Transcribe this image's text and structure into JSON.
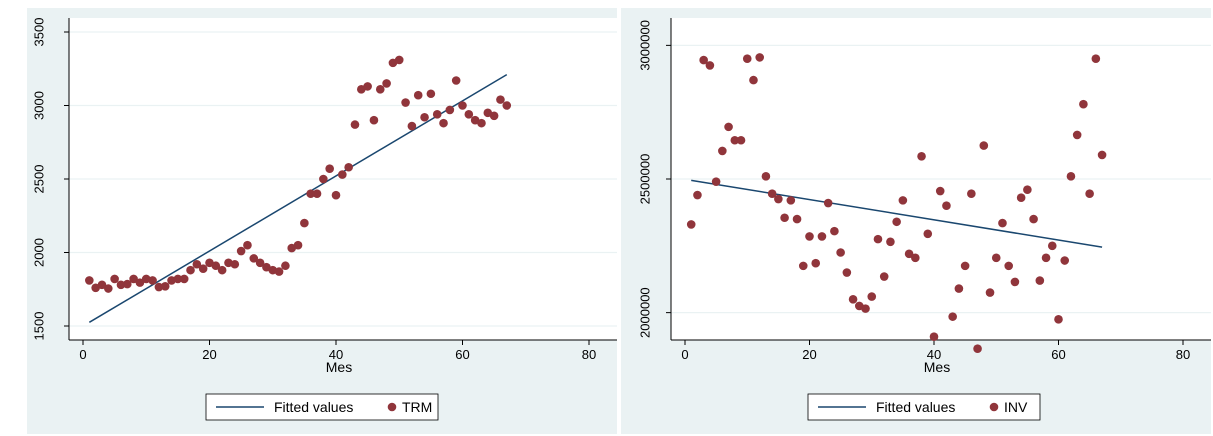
{
  "chart_data": [
    {
      "type": "scatter",
      "xlabel": "Mes",
      "ylabel": "",
      "xlim": [
        0,
        80
      ],
      "ylim": [
        1500,
        3500
      ],
      "x_ticks": [
        0,
        20,
        40,
        60,
        80
      ],
      "y_ticks": [
        1500,
        2000,
        2500,
        3000,
        3500
      ],
      "grid": true,
      "legend_position": "bottom",
      "fit_color": "#1a476f",
      "point_color": "#90353b",
      "series": [
        {
          "name": "TRM",
          "kind": "scatter",
          "x": [
            1,
            2,
            3,
            4,
            5,
            6,
            7,
            8,
            9,
            10,
            11,
            12,
            13,
            14,
            15,
            16,
            17,
            18,
            19,
            20,
            21,
            22,
            23,
            24,
            25,
            26,
            27,
            28,
            29,
            30,
            31,
            32,
            33,
            34,
            35,
            36,
            37,
            38,
            39,
            40,
            41,
            42,
            43,
            44,
            45,
            46,
            47,
            48,
            49,
            50,
            51,
            52,
            53,
            54,
            55,
            56,
            57,
            58,
            59,
            60,
            61,
            62,
            63,
            64,
            65,
            66,
            67
          ],
          "y": [
            1810,
            1760,
            1780,
            1755,
            1820,
            1780,
            1785,
            1820,
            1795,
            1820,
            1810,
            1765,
            1770,
            1810,
            1820,
            1820,
            1880,
            1920,
            1890,
            1930,
            1910,
            1880,
            1930,
            1920,
            2010,
            2050,
            1960,
            1930,
            1900,
            1880,
            1870,
            1910,
            2030,
            2050,
            2200,
            2400,
            2400,
            2500,
            2570,
            2390,
            2530,
            2580,
            2870,
            3110,
            3130,
            2900,
            3110,
            3150,
            3290,
            3310,
            3020,
            2860,
            3070,
            2920,
            3080,
            2940,
            2880,
            2970,
            3170,
            3000,
            2940,
            2900,
            2880,
            2950,
            2930,
            3040,
            3000
          ]
        },
        {
          "name": "Fitted values",
          "kind": "line",
          "x": [
            1,
            67
          ],
          "y": [
            1525,
            3210
          ]
        }
      ]
    },
    {
      "type": "scatter",
      "xlabel": "Mes",
      "ylabel": "",
      "xlim": [
        0,
        80
      ],
      "ylim": [
        1950000,
        3050000
      ],
      "x_ticks": [
        0,
        20,
        40,
        60,
        80
      ],
      "y_ticks": [
        2000000,
        2500000,
        3000000
      ],
      "grid": true,
      "legend_position": "bottom",
      "fit_color": "#1a476f",
      "point_color": "#90353b",
      "series": [
        {
          "name": "INV",
          "kind": "scatter",
          "x": [
            1,
            2,
            3,
            4,
            5,
            6,
            7,
            8,
            9,
            10,
            11,
            12,
            13,
            14,
            15,
            16,
            17,
            18,
            19,
            20,
            21,
            22,
            23,
            24,
            25,
            26,
            27,
            28,
            29,
            30,
            31,
            32,
            33,
            34,
            35,
            36,
            37,
            38,
            39,
            40,
            41,
            42,
            43,
            44,
            45,
            46,
            47,
            48,
            49,
            50,
            51,
            52,
            53,
            54,
            55,
            56,
            57,
            58,
            59,
            60,
            61,
            62,
            63,
            64,
            65,
            66,
            67
          ],
          "y": [
            2330000,
            2440000,
            2945000,
            2925000,
            2490000,
            2605000,
            2695000,
            2645000,
            2645000,
            2950000,
            2870000,
            2955000,
            2510000,
            2445000,
            2425000,
            2355000,
            2420000,
            2350000,
            2175000,
            2285000,
            2185000,
            2285000,
            2410000,
            2305000,
            2225000,
            2150000,
            2050000,
            2025000,
            2015000,
            2060000,
            2275000,
            2135000,
            2265000,
            2340000,
            2420000,
            2220000,
            2205000,
            2585000,
            2295000,
            1910000,
            2455000,
            2400000,
            1985000,
            2090000,
            2175000,
            2445000,
            1865000,
            2625000,
            2075000,
            2205000,
            2335000,
            2175000,
            2115000,
            2430000,
            2460000,
            2350000,
            2120000,
            2205000,
            2250000,
            1975000,
            2195000,
            2510000,
            2665000,
            2780000,
            2445000,
            2950000,
            2590000
          ]
        },
        {
          "name": "Fitted values",
          "kind": "line",
          "x": [
            1,
            67
          ],
          "y": [
            2495000,
            2245000
          ]
        }
      ]
    }
  ]
}
